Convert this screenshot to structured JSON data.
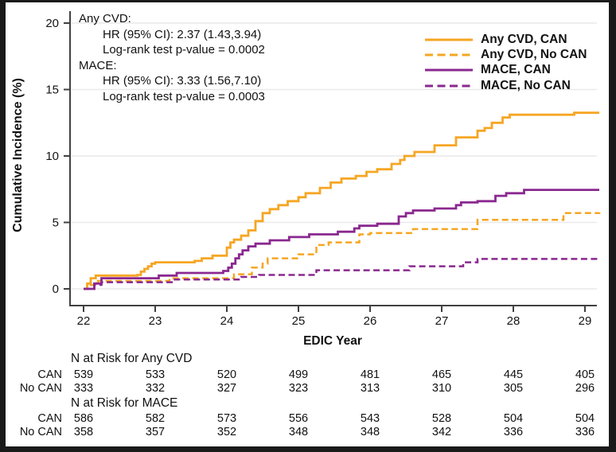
{
  "annotation": {
    "any_cvd_label": "Any CVD:",
    "any_cvd_hr": "HR (95% CI): 2.37 (1.43,3.94)",
    "any_cvd_p": "Log-rank test p-value = 0.0002",
    "mace_label": "MACE:",
    "mace_hr": "HR (95% CI): 3.33 (1.56,7.10)",
    "mace_p": "Log-rank test p-value = 0.0003"
  },
  "chart_data": {
    "type": "line",
    "subtype": "step-cumulative-incidence",
    "xlabel": "EDIC Year",
    "ylabel": "Cumulative Incidence (%)",
    "x_ticks": [
      22,
      23,
      24,
      25,
      26,
      27,
      28,
      29
    ],
    "y_ticks": [
      0,
      5,
      10,
      15,
      20
    ],
    "ylim": [
      0,
      20
    ],
    "xlim": [
      22,
      29.2
    ],
    "grid": "horizontal-light",
    "legend_position": "top-right",
    "colors": {
      "any_cvd": "#F5A623",
      "mace": "#8A288F"
    },
    "series": [
      {
        "name": "Any CVD, CAN",
        "color": "#F5A623",
        "style": "solid",
        "points": [
          [
            22,
            0
          ],
          [
            22.05,
            0.4
          ],
          [
            22.1,
            0.8
          ],
          [
            22.17,
            1.0
          ],
          [
            22.75,
            1.05
          ],
          [
            22.8,
            1.3
          ],
          [
            22.85,
            1.5
          ],
          [
            22.9,
            1.7
          ],
          [
            22.95,
            1.9
          ],
          [
            23.0,
            2.0
          ],
          [
            23.55,
            2.1
          ],
          [
            23.65,
            2.3
          ],
          [
            23.8,
            2.5
          ],
          [
            24.0,
            3.1
          ],
          [
            24.05,
            3.5
          ],
          [
            24.1,
            3.7
          ],
          [
            24.2,
            4.0
          ],
          [
            24.3,
            4.4
          ],
          [
            24.4,
            5.1
          ],
          [
            24.5,
            5.7
          ],
          [
            24.6,
            6.0
          ],
          [
            24.72,
            6.3
          ],
          [
            24.85,
            6.6
          ],
          [
            25.0,
            6.9
          ],
          [
            25.1,
            7.2
          ],
          [
            25.3,
            7.6
          ],
          [
            25.45,
            8.0
          ],
          [
            25.6,
            8.3
          ],
          [
            25.8,
            8.5
          ],
          [
            25.95,
            8.8
          ],
          [
            26.1,
            9.0
          ],
          [
            26.3,
            9.4
          ],
          [
            26.42,
            9.7
          ],
          [
            26.48,
            10.0
          ],
          [
            26.62,
            10.3
          ],
          [
            26.9,
            10.8
          ],
          [
            27.2,
            11.4
          ],
          [
            27.5,
            11.9
          ],
          [
            27.6,
            12.1
          ],
          [
            27.7,
            12.5
          ],
          [
            27.85,
            12.9
          ],
          [
            27.95,
            13.1
          ],
          [
            28.85,
            13.25
          ],
          [
            29.2,
            13.25
          ]
        ]
      },
      {
        "name": "Any CVD, No CAN",
        "color": "#F5A623",
        "style": "dashed",
        "points": [
          [
            22,
            0
          ],
          [
            22.1,
            0.3
          ],
          [
            22.2,
            0.6
          ],
          [
            23.2,
            0.8
          ],
          [
            24.1,
            1.1
          ],
          [
            24.35,
            1.6
          ],
          [
            24.5,
            1.9
          ],
          [
            24.57,
            2.3
          ],
          [
            25.0,
            2.6
          ],
          [
            25.25,
            3.3
          ],
          [
            25.42,
            3.5
          ],
          [
            25.85,
            4.1
          ],
          [
            26.0,
            4.2
          ],
          [
            26.6,
            4.5
          ],
          [
            27.5,
            5.2
          ],
          [
            28.7,
            5.7
          ],
          [
            29.2,
            5.75
          ]
        ]
      },
      {
        "name": "MACE, CAN",
        "color": "#8A288F",
        "style": "solid",
        "points": [
          [
            22,
            0
          ],
          [
            22.15,
            0.4
          ],
          [
            22.25,
            0.8
          ],
          [
            23.05,
            1.0
          ],
          [
            23.3,
            1.2
          ],
          [
            23.95,
            1.35
          ],
          [
            24.02,
            1.6
          ],
          [
            24.07,
            1.9
          ],
          [
            24.12,
            2.3
          ],
          [
            24.17,
            2.6
          ],
          [
            24.22,
            2.9
          ],
          [
            24.3,
            3.2
          ],
          [
            24.4,
            3.4
          ],
          [
            24.6,
            3.65
          ],
          [
            24.87,
            3.9
          ],
          [
            25.15,
            4.1
          ],
          [
            25.55,
            4.3
          ],
          [
            25.78,
            4.55
          ],
          [
            25.85,
            4.75
          ],
          [
            26.1,
            4.9
          ],
          [
            26.4,
            5.45
          ],
          [
            26.5,
            5.7
          ],
          [
            26.6,
            5.9
          ],
          [
            26.9,
            6.05
          ],
          [
            27.2,
            6.3
          ],
          [
            27.27,
            6.5
          ],
          [
            27.5,
            6.6
          ],
          [
            27.75,
            7.0
          ],
          [
            27.9,
            7.2
          ],
          [
            28.15,
            7.45
          ],
          [
            29.2,
            7.45
          ]
        ]
      },
      {
        "name": "MACE, No CAN",
        "color": "#8A288F",
        "style": "dashed",
        "points": [
          [
            22,
            0
          ],
          [
            22.15,
            0.3
          ],
          [
            22.25,
            0.5
          ],
          [
            23.25,
            0.7
          ],
          [
            24.2,
            0.9
          ],
          [
            24.45,
            1.05
          ],
          [
            25.25,
            1.4
          ],
          [
            26.55,
            1.7
          ],
          [
            27.3,
            2.0
          ],
          [
            27.5,
            2.25
          ],
          [
            29.2,
            2.3
          ]
        ]
      }
    ]
  },
  "risk_table": {
    "sections": [
      {
        "header": "N at Risk for Any CVD",
        "rows": [
          {
            "label": "CAN",
            "values": [
              "539",
              "533",
              "520",
              "499",
              "481",
              "465",
              "445",
              "405"
            ]
          },
          {
            "label": "No CAN",
            "values": [
              "333",
              "332",
              "327",
              "323",
              "313",
              "310",
              "305",
              "296"
            ]
          }
        ]
      },
      {
        "header": "N at Risk for MACE",
        "rows": [
          {
            "label": "CAN",
            "values": [
              "586",
              "582",
              "573",
              "556",
              "543",
              "528",
              "504",
              "504"
            ]
          },
          {
            "label": "No CAN",
            "values": [
              "358",
              "357",
              "352",
              "348",
              "348",
              "342",
              "336",
              "336"
            ]
          }
        ]
      }
    ]
  }
}
